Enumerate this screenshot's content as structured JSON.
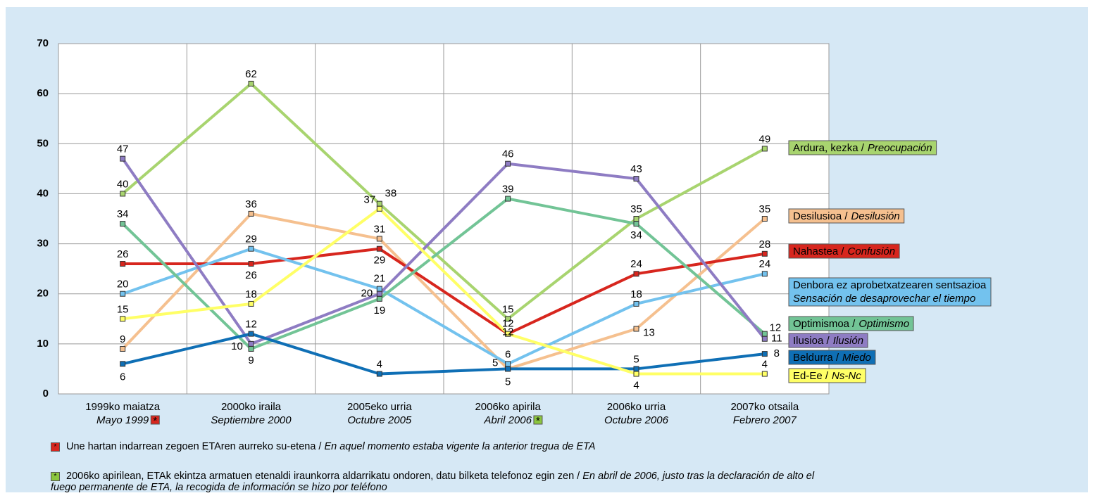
{
  "chart_data": {
    "type": "line",
    "categories": [
      "1999ko maiatza",
      "2000ko iraila",
      "2005eko urria",
      "2006ko apirila",
      "2006ko urria",
      "2007ko otsaila"
    ],
    "categories_italic": [
      "Mayo 1999",
      "Septiembre 2000",
      "Octubre 2005",
      "Abril 2006",
      "Octubre 2006",
      "Febrero 2007"
    ],
    "category_markers": [
      {
        "index": 0,
        "marker": "*",
        "color": "#d7261e"
      },
      {
        "index": 3,
        "marker": "*",
        "color": "#8cc63f"
      }
    ],
    "ylim": [
      0,
      70
    ],
    "yticks": [
      0,
      10,
      20,
      30,
      40,
      50,
      60,
      70
    ],
    "grid": true,
    "series": [
      {
        "name": "Ardura, kezka /",
        "name_italic": "Preocupación",
        "color": "#a8d46f",
        "values": [
          40,
          62,
          38,
          15,
          35,
          49
        ]
      },
      {
        "name": "Desilusioa /",
        "name_italic": "Desilusión",
        "color": "#f5c08f",
        "values": [
          9,
          36,
          31,
          5,
          13,
          35
        ]
      },
      {
        "name": "Nahastea /",
        "name_italic": "Confusión",
        "color": "#d7261e",
        "values": [
          26,
          26,
          29,
          12,
          24,
          28
        ]
      },
      {
        "name": "Denbora ez aprobetxatzearen sentsazioa",
        "name_italic": "Sensación de desaprovechar el tiempo",
        "color": "#73c2ee",
        "values": [
          20,
          29,
          21,
          6,
          18,
          24
        ]
      },
      {
        "name": "Optimismoa /",
        "name_italic": "Optimismo",
        "color": "#72c496",
        "values": [
          34,
          9,
          19,
          39,
          34,
          12
        ]
      },
      {
        "name": "Ilusioa /",
        "name_italic": "Ilusión",
        "color": "#8e7cc3",
        "values": [
          47,
          10,
          20,
          46,
          43,
          11
        ]
      },
      {
        "name": "Beldurra /",
        "name_italic": "Miedo",
        "color": "#0f6fb5",
        "values": [
          6,
          12,
          4,
          5,
          5,
          8
        ]
      },
      {
        "name": "Ed-Ee /",
        "name_italic": "Ns-Nc",
        "color": "#ffff66",
        "values": [
          15,
          18,
          37,
          12,
          4,
          4
        ]
      }
    ],
    "notes": [
      {
        "marker": "*",
        "color": "#d7261e",
        "text": "Une hartan indarrean zegoen ETAren aurreko su-etena /",
        "text_italic": "En aquel momento estaba vigente la anterior tregua de ETA"
      },
      {
        "marker": "*",
        "color": "#8cc63f",
        "text": "2006ko apirilean, ETAk ekintza armatuen etenaldi iraunkorra aldarrikatu ondoren, datu bilketa telefonoz egin zen /",
        "text_italic": "En abril de 2006, justo tras la declaración de alto el fuego permanente de ETA, la recogida de información se hizo por teléfono"
      }
    ]
  }
}
